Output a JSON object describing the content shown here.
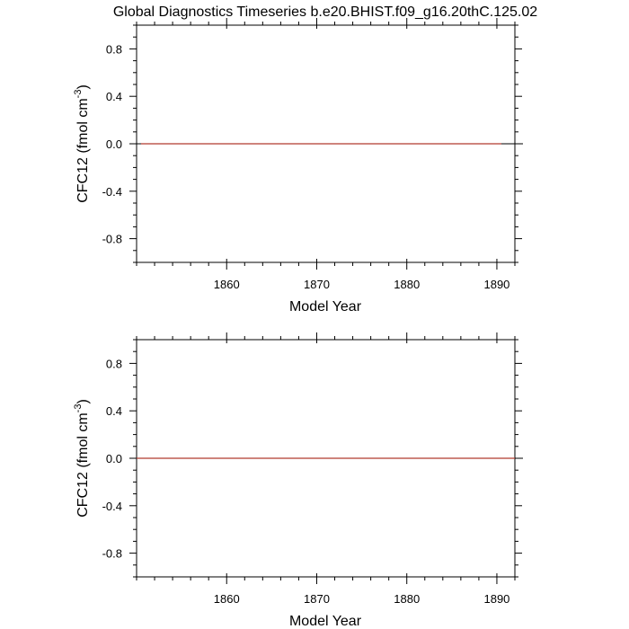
{
  "title": "Global Diagnostics Timeseries b.e20.BHIST.f09_g16.20thC.125.02",
  "colors": {
    "axis": "#000000",
    "zero_line": "#000000",
    "series": "#b03a2e",
    "background": "#ffffff"
  },
  "chart_data": [
    {
      "type": "line",
      "xlabel": "Model Year",
      "ylabel": "CFC12 (fmol cm",
      "ylabel_sup": "-3",
      "ylabel_close": ")",
      "xlim": [
        1850,
        1892
      ],
      "ylim": [
        -1.0,
        1.0
      ],
      "xticks": [
        1860,
        1870,
        1880,
        1890
      ],
      "xtick_labels": [
        "1860",
        "1870",
        "1880",
        "1890"
      ],
      "yticks": [
        0.8,
        0.4,
        0.0,
        -0.4,
        -0.8
      ],
      "ytick_labels": [
        "0.8",
        "0.4",
        "0.0",
        "-0.4",
        "-0.8"
      ],
      "grid": false,
      "series": [
        {
          "x": [
            1850.5,
            1890.5
          ],
          "y": [
            0.0,
            0.0
          ]
        }
      ]
    },
    {
      "type": "line",
      "xlabel": "Model Year",
      "ylabel": "CFC12 (fmol cm",
      "ylabel_sup": "-3",
      "ylabel_close": ")",
      "xlim": [
        1850,
        1892
      ],
      "ylim": [
        -1.0,
        1.0
      ],
      "xticks": [
        1860,
        1870,
        1880,
        1890
      ],
      "xtick_labels": [
        "1860",
        "1870",
        "1880",
        "1890"
      ],
      "yticks": [
        0.8,
        0.4,
        0.0,
        -0.4,
        -0.8
      ],
      "ytick_labels": [
        "0.8",
        "0.4",
        "0.0",
        "-0.4",
        "-0.8"
      ],
      "grid": false,
      "series": [
        {
          "x": [
            1850.0,
            1892.0
          ],
          "y": [
            0.0,
            0.0
          ]
        }
      ]
    }
  ]
}
